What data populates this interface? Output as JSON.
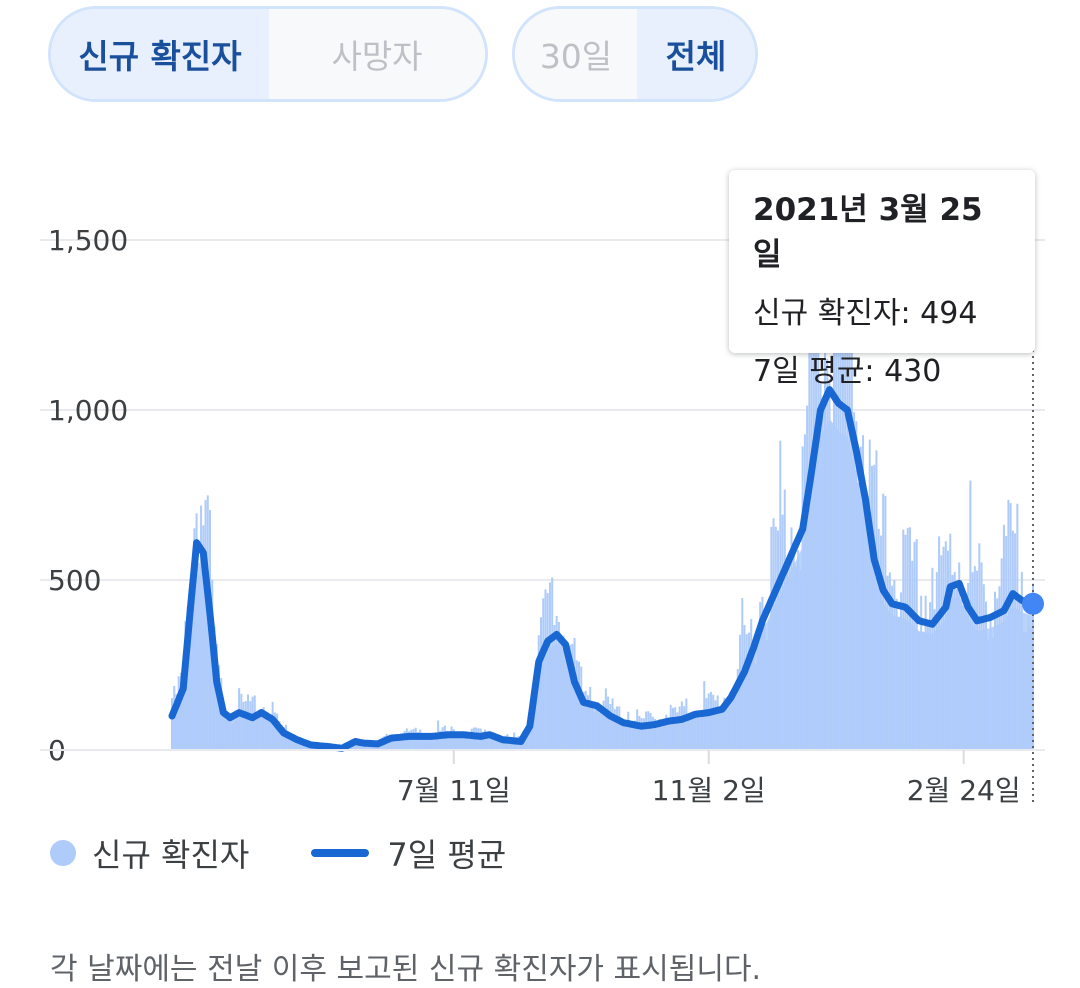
{
  "toggles": {
    "metric": {
      "cases_label": "신규 확진자",
      "deaths_label": "사망자",
      "selected": "cases"
    },
    "range": {
      "month_label": "30일",
      "all_label": "전체",
      "selected": "all"
    }
  },
  "tooltip": {
    "date": "2021년 3월 25일",
    "cases_line": "신규 확진자: 494",
    "avg_line": "7일 평균: 430"
  },
  "legend": {
    "cases": "신규 확진자",
    "avg": "7일 평균"
  },
  "footnote": "각 날짜에는 전날 이후 보고된 신규 확진자가 표시됩니다.",
  "colors": {
    "bars": "#aecbfa",
    "line": "#1967d2",
    "grid": "#e8eaed",
    "highlight": "#4285f4"
  },
  "chart_data": {
    "type": "bar",
    "ylim": [
      0,
      1700
    ],
    "y_ticks": [
      0,
      500,
      1000,
      1500
    ],
    "y_tick_labels": [
      "0",
      "500",
      "1,000",
      "1,500"
    ],
    "x_tick_labels": [
      "7월 11일",
      "11월 2일",
      "2월 24일"
    ],
    "x_tick_index": [
      126,
      240,
      354
    ],
    "grid": true,
    "legend_position": "bottom-left",
    "series": [
      {
        "name": "신규 확진자",
        "type": "bar"
      },
      {
        "name": "7일 평균",
        "type": "line"
      }
    ],
    "avg_keypoints": [
      [
        0,
        100
      ],
      [
        5,
        180
      ],
      [
        8,
        400
      ],
      [
        11,
        610
      ],
      [
        14,
        580
      ],
      [
        17,
        400
      ],
      [
        20,
        200
      ],
      [
        23,
        110
      ],
      [
        26,
        95
      ],
      [
        30,
        110
      ],
      [
        36,
        95
      ],
      [
        40,
        110
      ],
      [
        45,
        90
      ],
      [
        50,
        50
      ],
      [
        56,
        30
      ],
      [
        62,
        15
      ],
      [
        70,
        10
      ],
      [
        76,
        5
      ],
      [
        82,
        25
      ],
      [
        86,
        20
      ],
      [
        92,
        18
      ],
      [
        98,
        35
      ],
      [
        106,
        40
      ],
      [
        116,
        40
      ],
      [
        124,
        45
      ],
      [
        130,
        45
      ],
      [
        138,
        40
      ],
      [
        142,
        45
      ],
      [
        148,
        30
      ],
      [
        156,
        25
      ],
      [
        160,
        70
      ],
      [
        164,
        260
      ],
      [
        168,
        320
      ],
      [
        172,
        340
      ],
      [
        176,
        310
      ],
      [
        180,
        200
      ],
      [
        184,
        140
      ],
      [
        190,
        130
      ],
      [
        196,
        100
      ],
      [
        202,
        80
      ],
      [
        210,
        70
      ],
      [
        216,
        75
      ],
      [
        222,
        85
      ],
      [
        228,
        90
      ],
      [
        234,
        105
      ],
      [
        240,
        110
      ],
      [
        246,
        120
      ],
      [
        250,
        155
      ],
      [
        256,
        230
      ],
      [
        260,
        300
      ],
      [
        264,
        380
      ],
      [
        270,
        470
      ],
      [
        276,
        560
      ],
      [
        282,
        650
      ],
      [
        286,
        820
      ],
      [
        290,
        1000
      ],
      [
        294,
        1060
      ],
      [
        298,
        1020
      ],
      [
        302,
        1000
      ],
      [
        306,
        880
      ],
      [
        310,
        740
      ],
      [
        314,
        560
      ],
      [
        318,
        470
      ],
      [
        322,
        430
      ],
      [
        328,
        420
      ],
      [
        334,
        380
      ],
      [
        340,
        370
      ],
      [
        346,
        420
      ],
      [
        348,
        480
      ],
      [
        352,
        490
      ],
      [
        356,
        420
      ],
      [
        360,
        380
      ],
      [
        366,
        390
      ],
      [
        372,
        410
      ],
      [
        376,
        460
      ],
      [
        380,
        440
      ],
      [
        385,
        430
      ]
    ],
    "highlight_index": 385,
    "highlight_value": 430
  }
}
